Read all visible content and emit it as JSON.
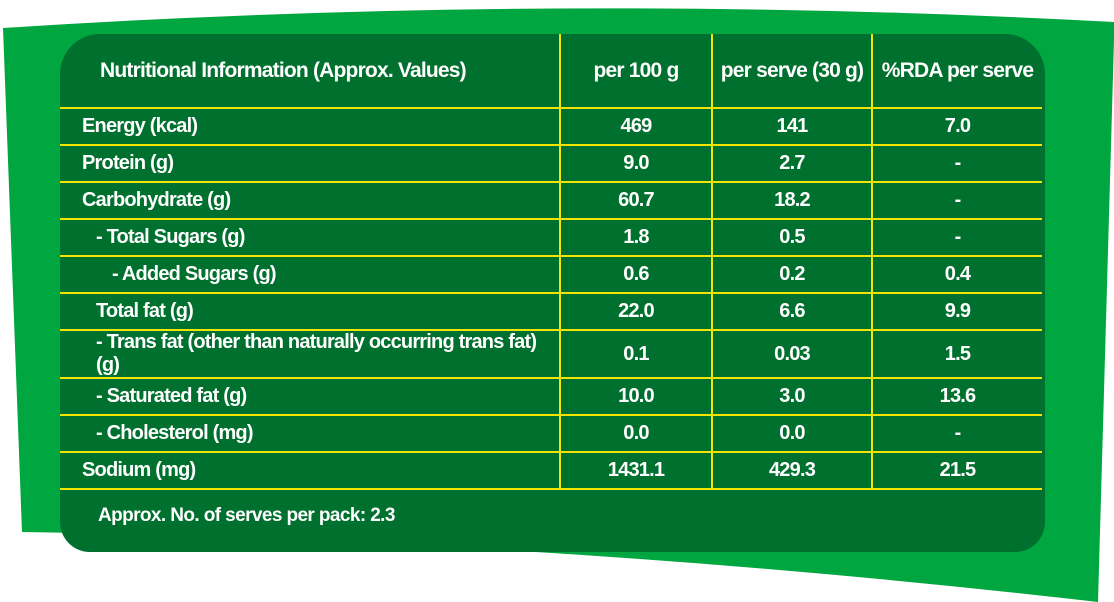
{
  "colors": {
    "outer": "#00a63f",
    "panel": "#00702e",
    "grid": "#f2e600",
    "text": "#ffffff"
  },
  "table": {
    "headers": [
      "Nutritional Information (Approx. Values)",
      "per 100 g",
      "per serve (30 g)",
      "%RDA per serve"
    ],
    "rows": [
      {
        "label": "Energy (kcal)",
        "per100": "469",
        "perserve": "141",
        "rda": "7.0"
      },
      {
        "label": "Protein (g)",
        "per100": "9.0",
        "perserve": "2.7",
        "rda": "-"
      },
      {
        "label": "Carbohydrate (g)",
        "per100": "60.7",
        "perserve": "18.2",
        "rda": "-"
      },
      {
        "label": "- Total Sugars (g)",
        "per100": "1.8",
        "perserve": "0.5",
        "rda": "-"
      },
      {
        "label": "- Added Sugars (g)",
        "per100": "0.6",
        "perserve": "0.2",
        "rda": "0.4"
      },
      {
        "label": "Total fat (g)",
        "per100": "22.0",
        "perserve": "6.6",
        "rda": "9.9"
      },
      {
        "label": "- Trans fat (other than naturally occurring trans fat) (g)",
        "per100": "0.1",
        "perserve": "0.03",
        "rda": "1.5"
      },
      {
        "label": "- Saturated fat (g)",
        "per100": "10.0",
        "perserve": "3.0",
        "rda": "13.6"
      },
      {
        "label": "- Cholesterol (mg)",
        "per100": "0.0",
        "perserve": "0.0",
        "rda": "-"
      },
      {
        "label": "Sodium (mg)",
        "per100": "1431.1",
        "perserve": "429.3",
        "rda": "21.5"
      }
    ]
  },
  "footer": "Approx. No. of serves per pack: 2.3"
}
